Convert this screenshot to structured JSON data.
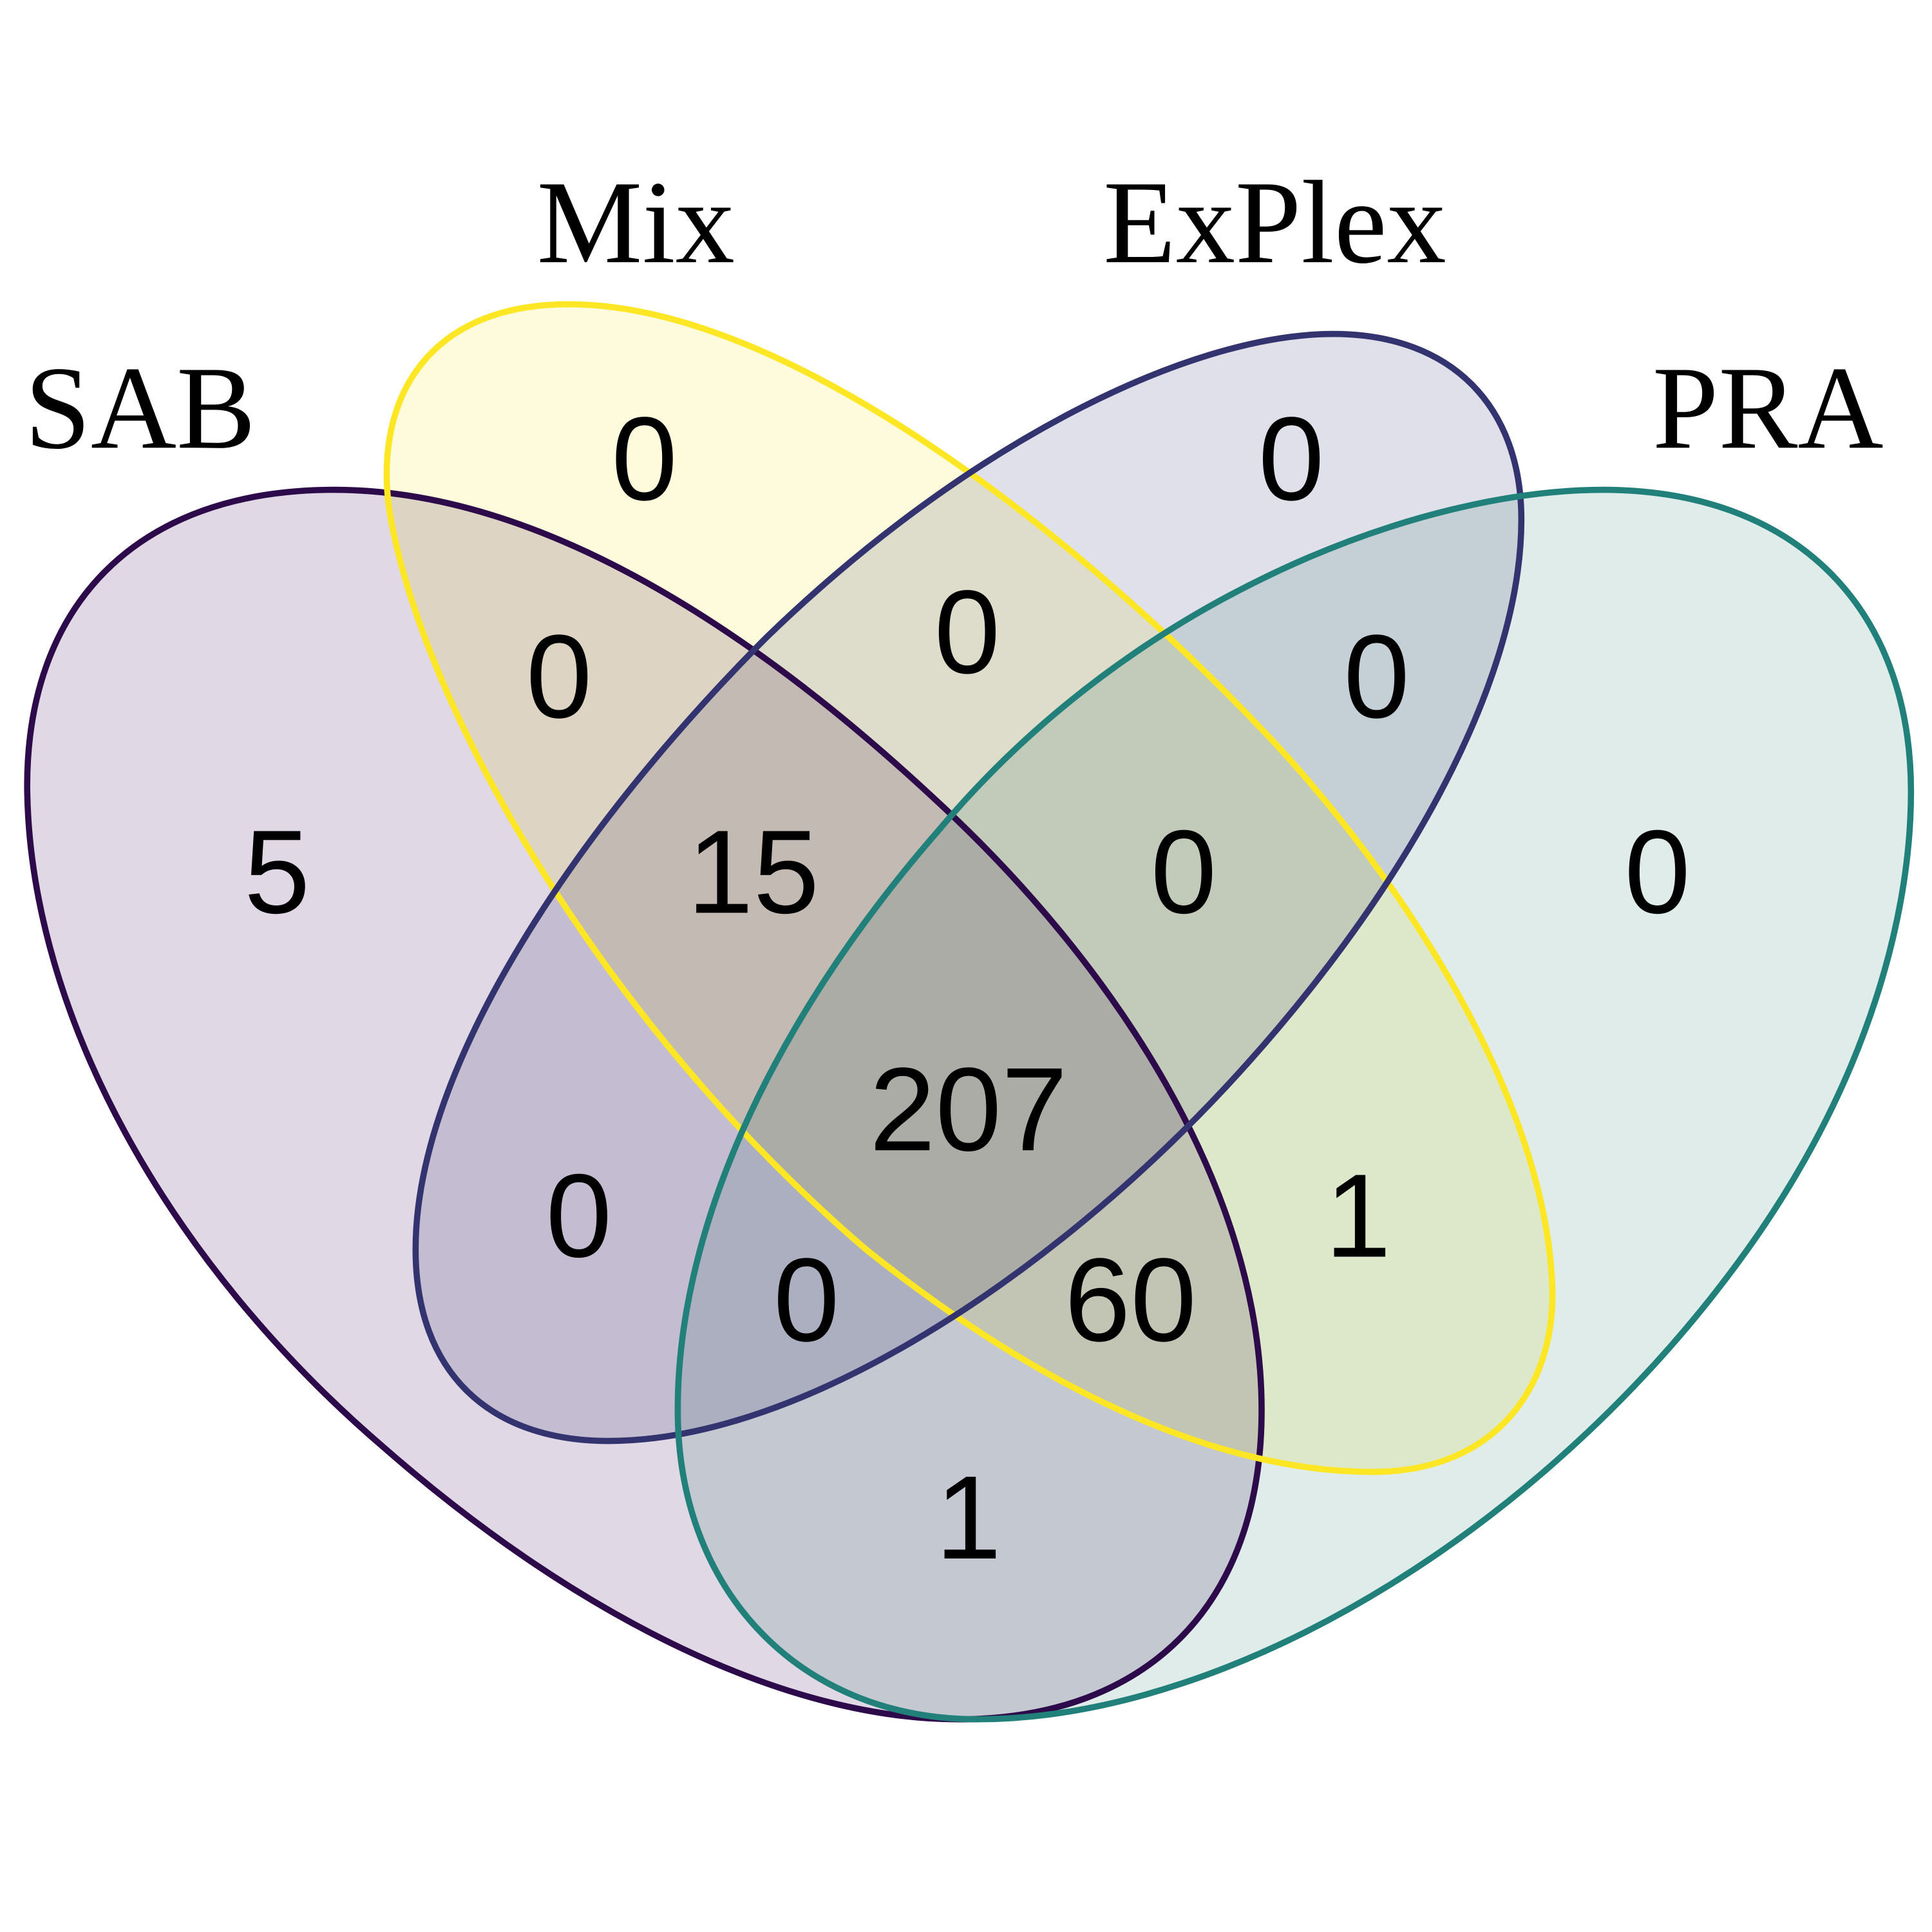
{
  "sets": [
    {
      "id": "SAB",
      "label": "SAB",
      "stroke": "#2d0a4a",
      "fill": "#e0d8e4"
    },
    {
      "id": "Mix",
      "label": "Mix",
      "stroke": "#fde725",
      "fill": "#fdfbdc"
    },
    {
      "id": "ExPlex",
      "label": "ExPlex",
      "stroke": "#33336f",
      "fill": "#e0e0ea"
    },
    {
      "id": "PRA",
      "label": "PRA",
      "stroke": "#21807a",
      "fill": "#dfecea"
    }
  ],
  "regions": [
    {
      "sets": [
        "Mix"
      ],
      "count": "0"
    },
    {
      "sets": [
        "ExPlex"
      ],
      "count": "0"
    },
    {
      "sets": [
        "SAB",
        "Mix"
      ],
      "count": "0"
    },
    {
      "sets": [
        "Mix",
        "ExPlex"
      ],
      "count": "0"
    },
    {
      "sets": [
        "ExPlex",
        "PRA"
      ],
      "count": "0"
    },
    {
      "sets": [
        "SAB"
      ],
      "count": "5"
    },
    {
      "sets": [
        "SAB",
        "Mix",
        "ExPlex"
      ],
      "count": "15"
    },
    {
      "sets": [
        "Mix",
        "ExPlex",
        "PRA"
      ],
      "count": "0"
    },
    {
      "sets": [
        "PRA"
      ],
      "count": "0"
    },
    {
      "sets": [
        "SAB",
        "Mix",
        "ExPlex",
        "PRA"
      ],
      "count": "207"
    },
    {
      "sets": [
        "SAB",
        "ExPlex"
      ],
      "count": "0"
    },
    {
      "sets": [
        "Mix",
        "PRA"
      ],
      "count": "1"
    },
    {
      "sets": [
        "SAB",
        "ExPlex",
        "PRA"
      ],
      "count": "0"
    },
    {
      "sets": [
        "SAB",
        "Mix",
        "PRA"
      ],
      "count": "60"
    },
    {
      "sets": [
        "SAB",
        "PRA"
      ],
      "count": "1"
    }
  ]
}
